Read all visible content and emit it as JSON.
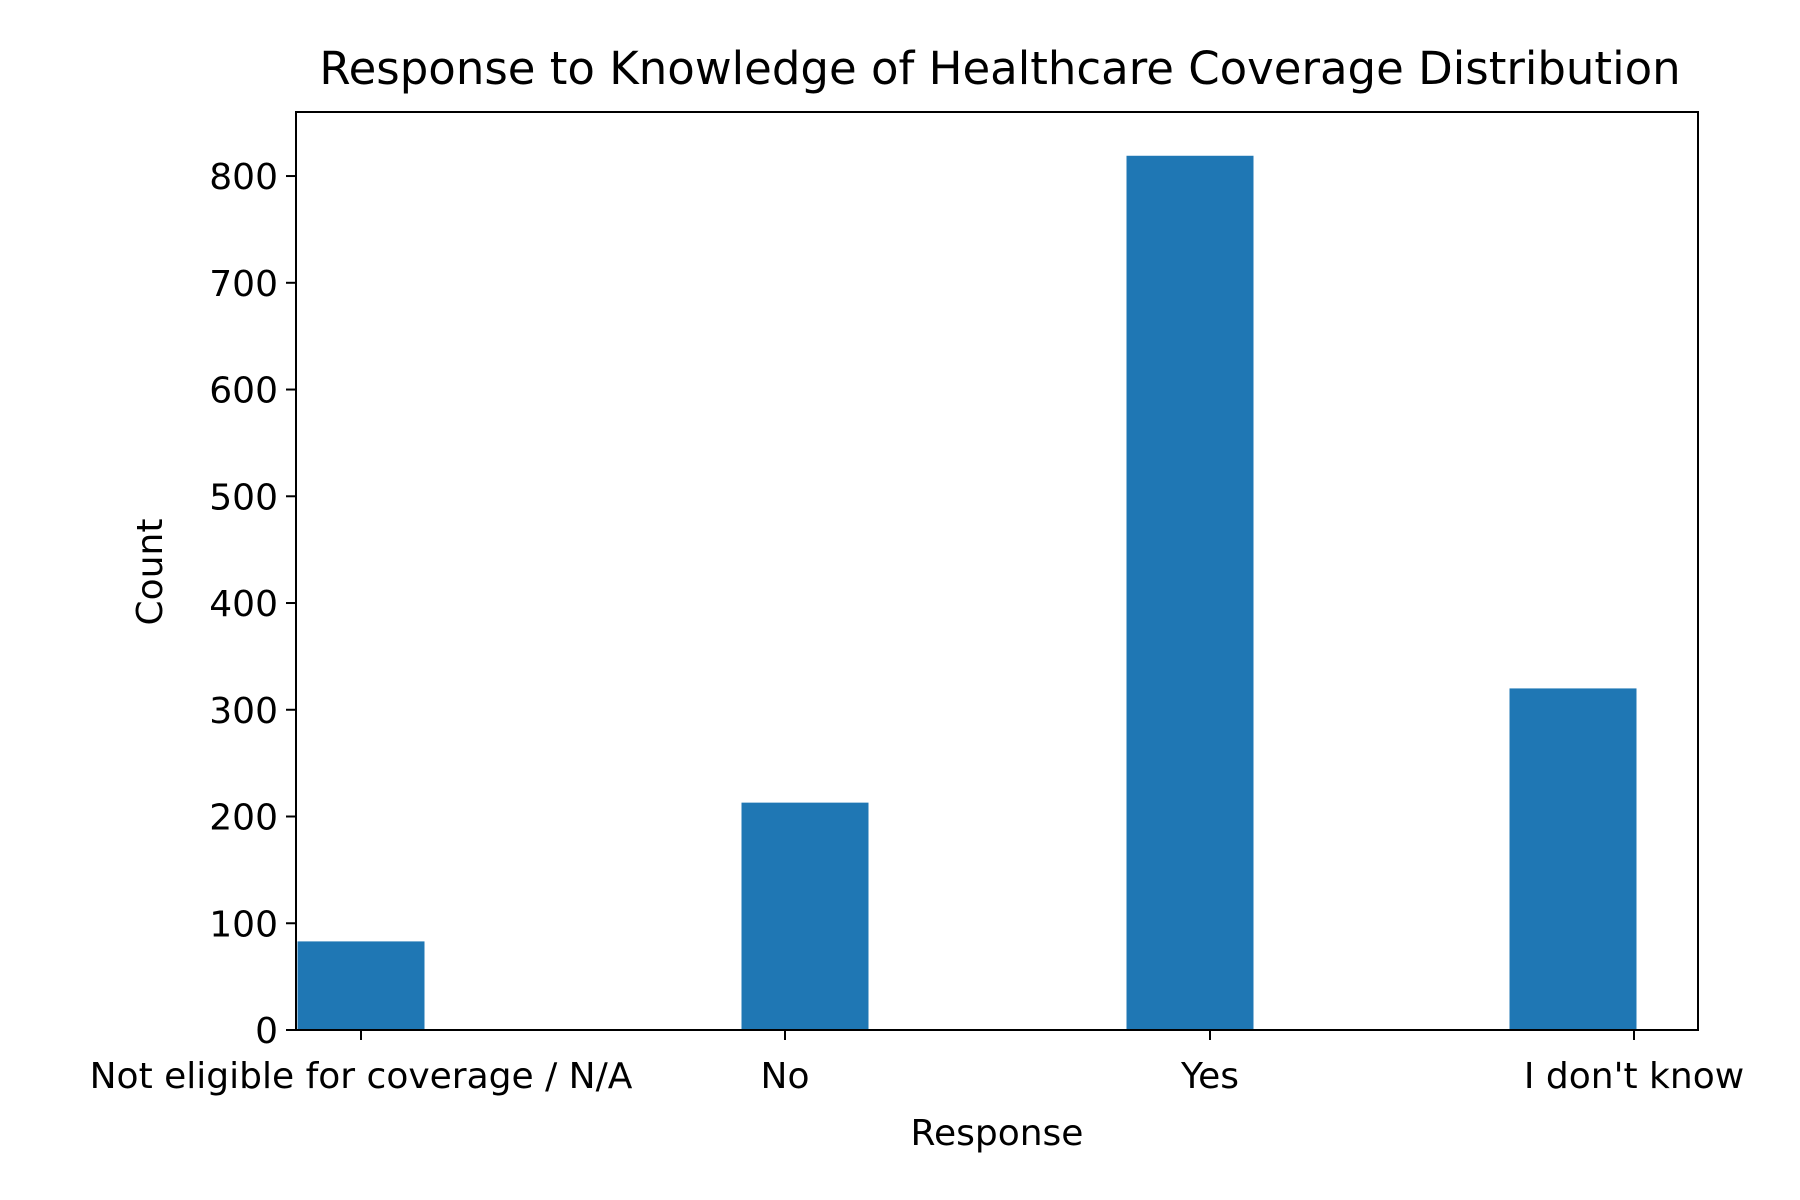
{
  "chart_data": {
    "type": "bar",
    "title": "Response to Knowledge of Healthcare Coverage Distribution",
    "xlabel": "Response",
    "ylabel": "Count",
    "categories": [
      "Not eligible for coverage / N/A",
      "No",
      "Yes",
      "I don't know"
    ],
    "values": [
      83,
      213,
      819,
      320
    ],
    "ylim": [
      0,
      860
    ],
    "yticks": [
      0,
      100,
      200,
      300,
      400,
      500,
      600,
      700,
      800
    ],
    "bar_color": "#1f77b4",
    "grid": false
  }
}
